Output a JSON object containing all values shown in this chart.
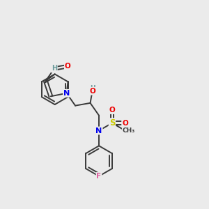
{
  "background_color": "#ebebeb",
  "atom_colors": {
    "C": "#3a3a3a",
    "H": "#6a9a9a",
    "N": "#0000ee",
    "O": "#ee0000",
    "S": "#cccc00",
    "F": "#e060a0"
  },
  "bond_color": "#3a3a3a",
  "bond_lw": 1.4,
  "figsize": [
    3.0,
    3.0
  ],
  "dpi": 100
}
